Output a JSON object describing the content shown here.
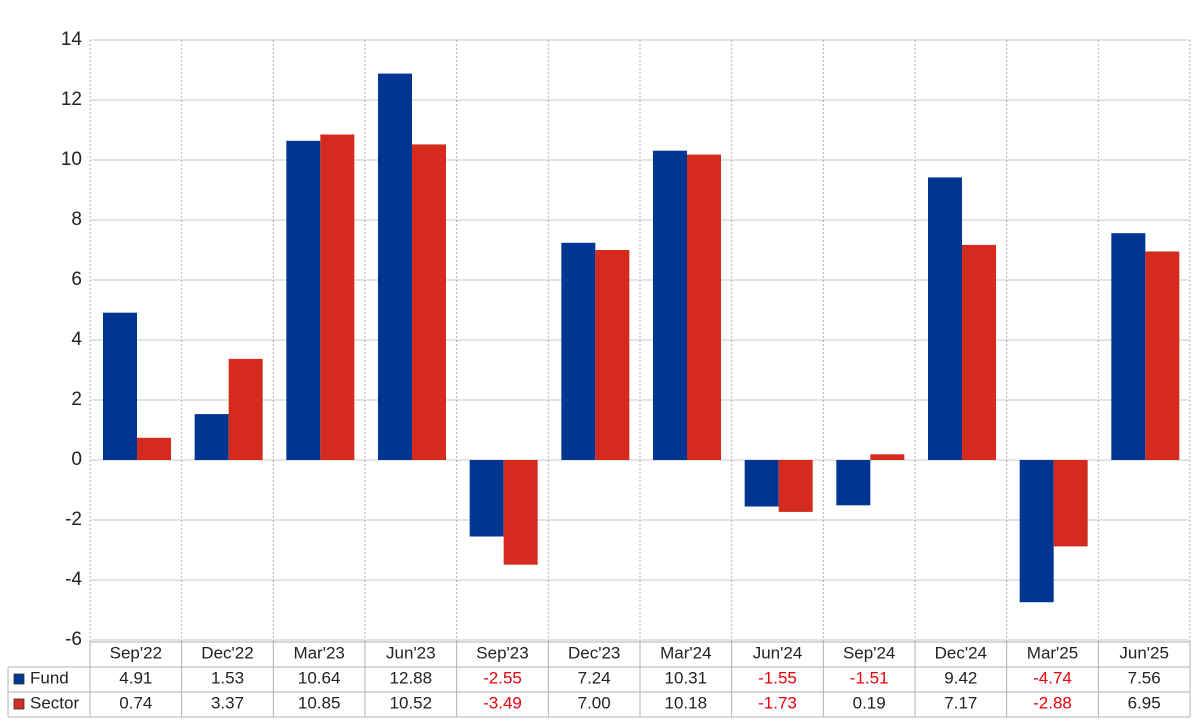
{
  "chart_data": {
    "type": "bar",
    "categories": [
      "Sep'22",
      "Dec'22",
      "Mar'23",
      "Jun'23",
      "Sep'23",
      "Dec'23",
      "Mar'24",
      "Jun'24",
      "Sep'24",
      "Dec'24",
      "Mar'25",
      "Jun'25"
    ],
    "series": [
      {
        "name": "Fund",
        "color": "#003591",
        "values": [
          4.91,
          1.53,
          10.64,
          12.88,
          -2.55,
          7.24,
          10.31,
          -1.55,
          -1.51,
          9.42,
          -4.74,
          7.56
        ],
        "value_labels": [
          "4.91",
          "1.53",
          "10.64",
          "12.88",
          "-2.55",
          "7.24",
          "10.31",
          "-1.55",
          "-1.51",
          "9.42",
          "-4.74",
          "7.56"
        ]
      },
      {
        "name": "Sector",
        "color": "#d52b1e",
        "values": [
          0.74,
          3.37,
          10.85,
          10.52,
          -3.49,
          7.0,
          10.18,
          -1.73,
          0.19,
          7.17,
          -2.88,
          6.95
        ],
        "value_labels": [
          "0.74",
          "3.37",
          "10.85",
          "10.52",
          "-3.49",
          "7.00",
          "10.18",
          "-1.73",
          "0.19",
          "7.17",
          "-2.88",
          "6.95"
        ]
      }
    ],
    "ylim": [
      -6,
      14
    ],
    "yticks": [
      -6,
      -4,
      -2,
      0,
      2,
      4,
      6,
      8,
      10,
      12,
      14
    ],
    "grid": true
  }
}
